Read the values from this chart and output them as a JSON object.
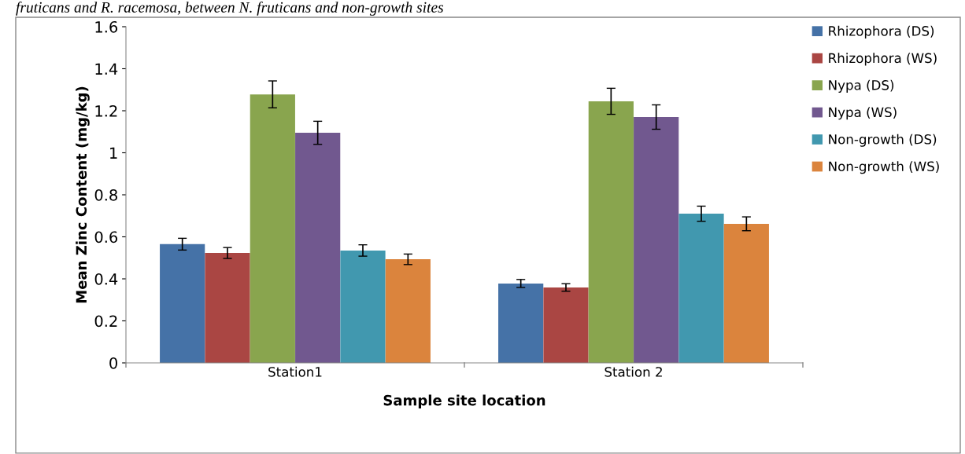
{
  "chart_data": {
    "type": "bar",
    "xlabel": "Sample site location",
    "ylabel": "Mean Zinc Content (mg/kg)",
    "annotations": [
      "fruticans and R. racemosa, between N. fruticans and non-growth sites"
    ],
    "categories": [
      "Station1",
      "Station 2"
    ],
    "series": [
      {
        "name": "Rhizophora (DS)",
        "color": "#4572a7",
        "values": [
          0.565,
          0.378
        ],
        "errors": [
          0.028,
          0.019
        ]
      },
      {
        "name": "Rhizophora (WS)",
        "color": "#aa4643",
        "values": [
          0.523,
          0.359
        ],
        "errors": [
          0.026,
          0.018
        ]
      },
      {
        "name": "Nypa (DS)",
        "color": "#89a54e",
        "values": [
          1.278,
          1.245
        ],
        "errors": [
          0.064,
          0.062
        ]
      },
      {
        "name": "Nypa (WS)",
        "color": "#71588f",
        "values": [
          1.095,
          1.17
        ],
        "errors": [
          0.055,
          0.058
        ]
      },
      {
        "name": "Non-growth (DS)",
        "color": "#4198af",
        "values": [
          0.535,
          0.71
        ],
        "errors": [
          0.027,
          0.036
        ]
      },
      {
        "name": "Non-growth (WS)",
        "color": "#db843d",
        "values": [
          0.493,
          0.662
        ],
        "errors": [
          0.025,
          0.033
        ]
      }
    ],
    "ylim": [
      0,
      1.6
    ],
    "yticks": [
      0,
      0.2,
      0.4,
      0.6,
      0.8,
      1,
      1.2,
      1.4,
      1.6
    ],
    "grid": false,
    "legend": "right"
  }
}
